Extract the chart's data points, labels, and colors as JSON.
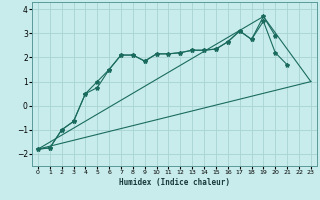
{
  "xlabel": "Humidex (Indice chaleur)",
  "bg_color": "#c8ecec",
  "grid_color": "#a8d4d4",
  "line_color": "#1a6b5e",
  "xlim": [
    -0.5,
    23.5
  ],
  "ylim": [
    -2.5,
    4.3
  ],
  "xticks": [
    0,
    1,
    2,
    3,
    4,
    5,
    6,
    7,
    8,
    9,
    10,
    11,
    12,
    13,
    14,
    15,
    16,
    17,
    18,
    19,
    20,
    21,
    22,
    23
  ],
  "yticks": [
    -2,
    -1,
    0,
    1,
    2,
    3,
    4
  ],
  "line1_x": [
    0,
    1,
    2,
    3,
    4,
    5,
    6,
    7,
    8,
    9,
    10,
    11,
    12,
    13,
    14,
    15,
    16,
    17,
    18,
    19,
    20,
    21
  ],
  "line1_y": [
    -1.8,
    -1.75,
    -1.0,
    -0.65,
    0.5,
    0.75,
    1.5,
    2.1,
    2.1,
    1.85,
    2.15,
    2.15,
    2.2,
    2.3,
    2.3,
    2.35,
    2.65,
    3.1,
    2.75,
    3.5,
    2.2,
    1.7
  ],
  "line2_x": [
    0,
    1,
    2,
    3,
    4,
    5,
    6,
    7,
    8,
    9,
    10,
    11,
    12,
    13,
    14,
    15,
    16,
    17,
    18,
    19,
    20
  ],
  "line2_y": [
    -1.8,
    -1.75,
    -1.0,
    -0.65,
    0.5,
    1.0,
    1.5,
    2.1,
    2.1,
    1.85,
    2.15,
    2.15,
    2.2,
    2.3,
    2.3,
    2.35,
    2.65,
    3.1,
    2.75,
    3.7,
    2.9
  ],
  "line3_x": [
    0,
    23
  ],
  "line3_y": [
    -1.8,
    1.0
  ],
  "line4_x": [
    0,
    19,
    23
  ],
  "line4_y": [
    -1.8,
    3.7,
    1.0
  ]
}
